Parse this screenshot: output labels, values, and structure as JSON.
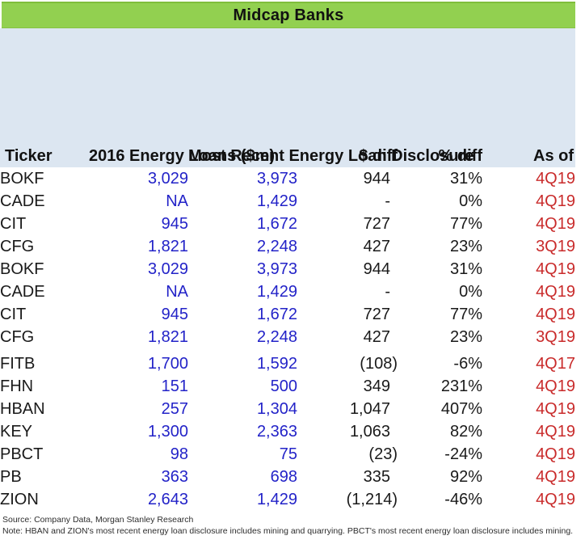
{
  "title": "Midcap Banks",
  "colors": {
    "title_bar_green": "#92d050",
    "header_blue": "#dce6f1",
    "value_blue": "#2323c8",
    "asof_red": "#c92b2b",
    "text_black": "#1a1a1a"
  },
  "table": {
    "columns": [
      {
        "key": "ticker",
        "label": "Ticker"
      },
      {
        "key": "loans_2016",
        "label": "2016\nEnergy\nLoans ($m)"
      },
      {
        "key": "recent_disclosure",
        "label": "Most\nRecent\nEnergy\nLoan\nDisclosure"
      },
      {
        "key": "dollar_diff",
        "label": "$ diff"
      },
      {
        "key": "pct_diff",
        "label": "% diff"
      },
      {
        "key": "as_of",
        "label": "As of"
      }
    ],
    "spacer_after_row": 8,
    "rows": [
      [
        "BOKF",
        "3,029",
        "3,973",
        "944",
        "31%",
        "4Q19"
      ],
      [
        "CADE",
        "NA",
        "1,429",
        "-",
        "0%",
        "4Q19"
      ],
      [
        "CIT",
        "945",
        "1,672",
        "727",
        "77%",
        "4Q19"
      ],
      [
        "CFG",
        "1,821",
        "2,248",
        "427",
        "23%",
        "3Q19"
      ],
      [
        "BOKF",
        "3,029",
        "3,973",
        "944",
        "31%",
        "4Q19"
      ],
      [
        "CADE",
        "NA",
        "1,429",
        "-",
        "0%",
        "4Q19"
      ],
      [
        "CIT",
        "945",
        "1,672",
        "727",
        "77%",
        "4Q19"
      ],
      [
        "CFG",
        "1,821",
        "2,248",
        "427",
        "23%",
        "3Q19"
      ],
      [
        "FITB",
        "1,700",
        "1,592",
        "(108)",
        "-6%",
        "4Q17"
      ],
      [
        "FHN",
        "151",
        "500",
        "349",
        "231%",
        "4Q19"
      ],
      [
        "HBAN",
        "257",
        "1,304",
        "1,047",
        "407%",
        "4Q19"
      ],
      [
        "KEY",
        "1,300",
        "2,363",
        "1,063",
        "82%",
        "4Q19"
      ],
      [
        "PBCT",
        "98",
        "75",
        "(23)",
        "-24%",
        "4Q19"
      ],
      [
        "PB",
        "363",
        "698",
        "335",
        "92%",
        "4Q19"
      ],
      [
        "ZION",
        "2,643",
        "1,429",
        "(1,214)",
        "-46%",
        "4Q19"
      ]
    ]
  },
  "footer": {
    "source": "Source: Company Data, Morgan Stanley Research",
    "note": "Note: HBAN and ZION's most recent energy loan disclosure includes mining and quarrying. PBCT's most recent energy loan disclosure includes mining."
  },
  "chart_data": {
    "type": "table",
    "title": "Midcap Banks",
    "columns": [
      "Ticker",
      "2016 Energy Loans ($m)",
      "Most Recent Energy Loan Disclosure",
      "$ diff",
      "% diff",
      "As of"
    ],
    "rows": [
      [
        "BOKF",
        3029,
        3973,
        944,
        "31%",
        "4Q19"
      ],
      [
        "CADE",
        null,
        1429,
        null,
        "0%",
        "4Q19"
      ],
      [
        "CIT",
        945,
        1672,
        727,
        "77%",
        "4Q19"
      ],
      [
        "CFG",
        1821,
        2248,
        427,
        "23%",
        "3Q19"
      ],
      [
        "BOKF",
        3029,
        3973,
        944,
        "31%",
        "4Q19"
      ],
      [
        "CADE",
        null,
        1429,
        null,
        "0%",
        "4Q19"
      ],
      [
        "CIT",
        945,
        1672,
        727,
        "77%",
        "4Q19"
      ],
      [
        "CFG",
        1821,
        2248,
        427,
        "23%",
        "3Q19"
      ],
      [
        "FITB",
        1700,
        1592,
        -108,
        "-6%",
        "4Q17"
      ],
      [
        "FHN",
        151,
        500,
        349,
        "231%",
        "4Q19"
      ],
      [
        "HBAN",
        257,
        1304,
        1047,
        "407%",
        "4Q19"
      ],
      [
        "KEY",
        1300,
        2363,
        1063,
        "82%",
        "4Q19"
      ],
      [
        "PBCT",
        98,
        75,
        -23,
        "-24%",
        "4Q19"
      ],
      [
        "PB",
        363,
        698,
        335,
        "92%",
        "4Q19"
      ],
      [
        "ZION",
        2643,
        1429,
        -1214,
        "-46%",
        "4Q19"
      ]
    ]
  }
}
